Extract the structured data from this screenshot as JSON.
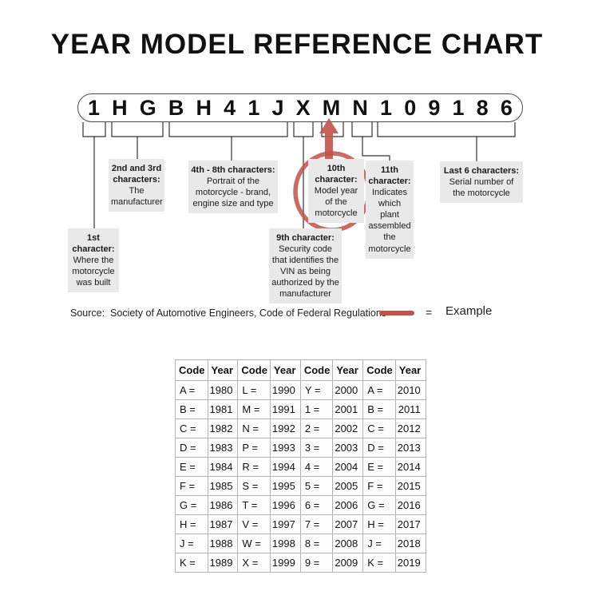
{
  "page": {
    "title": "YEAR MODEL REFERENCE CHART"
  },
  "vin": {
    "characters": [
      "1",
      "H",
      "G",
      "B",
      "H",
      "4",
      "1",
      "J",
      "X",
      "M",
      "N",
      "1",
      "0",
      "9",
      "1",
      "8",
      "6"
    ]
  },
  "callouts": {
    "first": {
      "title": "1st character:",
      "body": "Where the motorcycle was built"
    },
    "second_third": {
      "title": "2nd and 3rd characters:",
      "body": "The manufacturer"
    },
    "fourth_eighth": {
      "title": "4th - 8th characters:",
      "body": "Portrait of the motorcycle - brand, engine size and type"
    },
    "ninth": {
      "title": "9th character:",
      "body": "Security code that identifies the VIN as being authorized by the manufacturer"
    },
    "tenth": {
      "title": "10th character:",
      "body": "Model year of the motorcycle"
    },
    "eleventh": {
      "title": "11th character:",
      "body": "Indicates which plant assembled the motorcycle"
    },
    "last_six": {
      "title": "Last 6 characters:",
      "body": "Serial number of the motorcycle"
    }
  },
  "source": {
    "text": "Source:  Society of Automotive Engineers, Code of Federal Regulations"
  },
  "legend": {
    "equals_sign": "=",
    "label": "Example"
  },
  "colors": {
    "highlight_red": "#c25149",
    "callout_grey": "#e9e9e9"
  },
  "table": {
    "headers": [
      "Code",
      "Year",
      "Code",
      "Year",
      "Code",
      "Year",
      "Code",
      "Year"
    ],
    "rows": [
      [
        "A =",
        "1980",
        "L =",
        "1990",
        "Y =",
        "2000",
        "A =",
        "2010"
      ],
      [
        "B =",
        "1981",
        "M =",
        "1991",
        "1 =",
        "2001",
        "B =",
        "2011"
      ],
      [
        "C =",
        "1982",
        "N =",
        "1992",
        "2 =",
        "2002",
        "C =",
        "2012"
      ],
      [
        "D =",
        "1983",
        "P =",
        "1993",
        "3 =",
        "2003",
        "D =",
        "2013"
      ],
      [
        "E =",
        "1984",
        "R =",
        "1994",
        "4 =",
        "2004",
        "E =",
        "2014"
      ],
      [
        "F =",
        "1985",
        "S =",
        "1995",
        "5 =",
        "2005",
        "F =",
        "2015"
      ],
      [
        "G =",
        "1986",
        "T =",
        "1996",
        "6 =",
        "2006",
        "G =",
        "2016"
      ],
      [
        "H =",
        "1987",
        "V =",
        "1997",
        "7 =",
        "2007",
        "H =",
        "2017"
      ],
      [
        "J =",
        "1988",
        "W =",
        "1998",
        "8 =",
        "2008",
        "J =",
        "2018"
      ],
      [
        "K =",
        "1989",
        "X =",
        "1999",
        "9 =",
        "2009",
        "K =",
        "2019"
      ]
    ]
  }
}
